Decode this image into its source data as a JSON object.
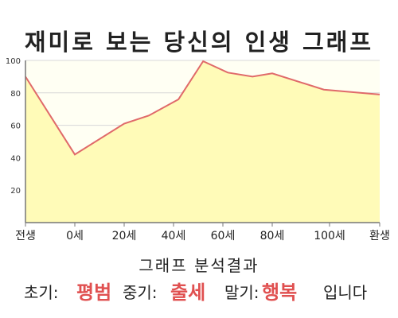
{
  "chart_data": {
    "type": "area",
    "title": "재미로 보는 당신의 인생 그래프",
    "xlabel": "",
    "ylabel": "",
    "x_ticks": [
      "전생",
      "0세",
      "20세",
      "40세",
      "60세",
      "80세",
      "100세",
      "환생"
    ],
    "y_ticks": [
      "20",
      "40",
      "60",
      "80",
      "100"
    ],
    "ylim": [
      0,
      100
    ],
    "grid": "horizontal",
    "fill_color": "#fffbb8",
    "line_color": "#e06a6a",
    "series": [
      {
        "points": [
          {
            "x": 0,
            "y": 90
          },
          {
            "x": 1,
            "y": 42
          },
          {
            "x": 2,
            "y": 61
          },
          {
            "x": 2.5,
            "y": 66
          },
          {
            "x": 3.1,
            "y": 76
          },
          {
            "x": 3.6,
            "y": 99.5
          },
          {
            "x": 4.1,
            "y": 92.5
          },
          {
            "x": 4.6,
            "y": 90
          },
          {
            "x": 5,
            "y": 92
          },
          {
            "x": 5.9,
            "y": 82
          },
          {
            "x": 7,
            "y": 79
          }
        ]
      }
    ]
  },
  "summary": {
    "heading": "그래프 분석결과",
    "early_label": "초기:",
    "early_value": "평범",
    "middle_label": "중기:",
    "middle_value": "출세",
    "late_label": "말기:",
    "late_value": "행복",
    "closing": "입니다"
  }
}
